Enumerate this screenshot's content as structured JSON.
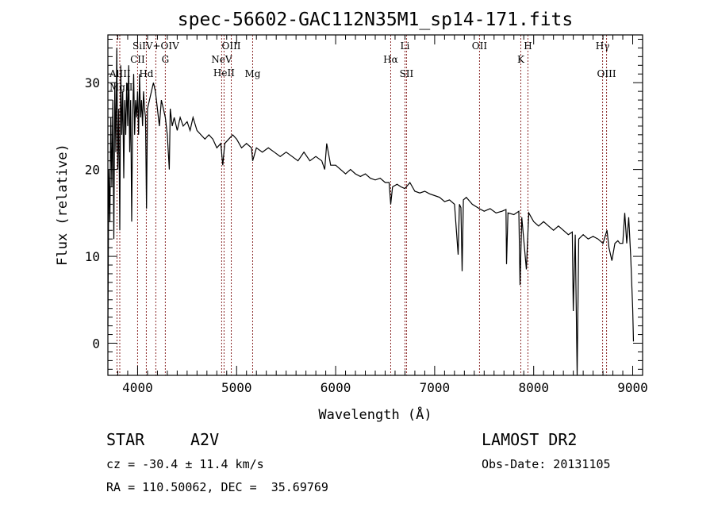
{
  "chart_data": {
    "type": "line",
    "title": "spec-56602-GAC112N35M1_sp14-171.fits",
    "xlabel": "Wavelength (Å)",
    "ylabel": "Flux (relative)",
    "xlim": [
      3700,
      9100
    ],
    "ylim": [
      -3.7,
      35.5
    ],
    "xticks": [
      4000,
      5000,
      6000,
      7000,
      8000,
      9000
    ],
    "xtick_labels": [
      "4000",
      "5000",
      "6000",
      "7000",
      "8000",
      "9000"
    ],
    "yticks": [
      0,
      10,
      20,
      30
    ],
    "ytick_labels": [
      "0",
      "10",
      "20",
      "30"
    ],
    "grid": false,
    "series": [
      {
        "name": "spectrum",
        "color": "#000000",
        "points": [
          [
            3700,
            2
          ],
          [
            3710,
            20
          ],
          [
            3720,
            14
          ],
          [
            3730,
            26
          ],
          [
            3740,
            18
          ],
          [
            3750,
            28
          ],
          [
            3760,
            12
          ],
          [
            3770,
            30
          ],
          [
            3780,
            22
          ],
          [
            3790,
            34
          ],
          [
            3800,
            20
          ],
          [
            3810,
            27
          ],
          [
            3820,
            13
          ],
          [
            3830,
            32
          ],
          [
            3840,
            24
          ],
          [
            3850,
            29
          ],
          [
            3860,
            19
          ],
          [
            3870,
            28
          ],
          [
            3880,
            24
          ],
          [
            3890,
            30
          ],
          [
            3900,
            25
          ],
          [
            3910,
            32
          ],
          [
            3920,
            22
          ],
          [
            3930,
            28
          ],
          [
            3940,
            14
          ],
          [
            3950,
            26
          ],
          [
            3960,
            31
          ],
          [
            3970,
            24
          ],
          [
            3980,
            28
          ],
          [
            3990,
            26
          ],
          [
            4000,
            29
          ],
          [
            4010,
            24
          ],
          [
            4020,
            31
          ],
          [
            4030,
            26
          ],
          [
            4040,
            28
          ],
          [
            4050,
            25
          ],
          [
            4060,
            29
          ],
          [
            4070,
            27
          ],
          [
            4080,
            26
          ],
          [
            4090,
            15.5
          ],
          [
            4100,
            27
          ],
          [
            4120,
            28
          ],
          [
            4140,
            29
          ],
          [
            4160,
            30
          ],
          [
            4180,
            29
          ],
          [
            4200,
            27
          ],
          [
            4220,
            25
          ],
          [
            4240,
            28
          ],
          [
            4260,
            27
          ],
          [
            4280,
            26
          ],
          [
            4300,
            24
          ],
          [
            4320,
            20
          ],
          [
            4330,
            27
          ],
          [
            4350,
            25
          ],
          [
            4370,
            26
          ],
          [
            4400,
            24.5
          ],
          [
            4430,
            26
          ],
          [
            4460,
            25
          ],
          [
            4500,
            25.5
          ],
          [
            4530,
            24.5
          ],
          [
            4560,
            26
          ],
          [
            4600,
            24.5
          ],
          [
            4640,
            24
          ],
          [
            4680,
            23.5
          ],
          [
            4720,
            24
          ],
          [
            4760,
            23.5
          ],
          [
            4800,
            22.5
          ],
          [
            4840,
            23
          ],
          [
            4860,
            20.5
          ],
          [
            4880,
            23
          ],
          [
            4920,
            23.5
          ],
          [
            4960,
            24
          ],
          [
            5000,
            23.5
          ],
          [
            5050,
            22.5
          ],
          [
            5100,
            23
          ],
          [
            5150,
            22.5
          ],
          [
            5162,
            21
          ],
          [
            5200,
            22.5
          ],
          [
            5260,
            22
          ],
          [
            5320,
            22.5
          ],
          [
            5380,
            22
          ],
          [
            5440,
            21.5
          ],
          [
            5500,
            22
          ],
          [
            5560,
            21.5
          ],
          [
            5620,
            21
          ],
          [
            5680,
            22
          ],
          [
            5740,
            21
          ],
          [
            5800,
            21.5
          ],
          [
            5860,
            21
          ],
          [
            5890,
            20
          ],
          [
            5910,
            23
          ],
          [
            5950,
            20.5
          ],
          [
            6000,
            20.5
          ],
          [
            6050,
            20
          ],
          [
            6100,
            19.5
          ],
          [
            6150,
            20
          ],
          [
            6200,
            19.5
          ],
          [
            6250,
            19.2
          ],
          [
            6300,
            19.5
          ],
          [
            6350,
            19
          ],
          [
            6400,
            18.8
          ],
          [
            6450,
            19
          ],
          [
            6500,
            18.5
          ],
          [
            6540,
            18.5
          ],
          [
            6556,
            16
          ],
          [
            6575,
            18
          ],
          [
            6620,
            18.3
          ],
          [
            6660,
            18
          ],
          [
            6700,
            17.8
          ],
          [
            6750,
            18.5
          ],
          [
            6800,
            17.5
          ],
          [
            6850,
            17.3
          ],
          [
            6900,
            17.5
          ],
          [
            6950,
            17.2
          ],
          [
            7000,
            17
          ],
          [
            7050,
            16.8
          ],
          [
            7100,
            16.3
          ],
          [
            7150,
            16.5
          ],
          [
            7200,
            16
          ],
          [
            7237,
            10.2
          ],
          [
            7250,
            16
          ],
          [
            7265,
            15.6
          ],
          [
            7277,
            8.3
          ],
          [
            7290,
            16.5
          ],
          [
            7320,
            16.8
          ],
          [
            7380,
            16
          ],
          [
            7450,
            15.5
          ],
          [
            7500,
            15.2
          ],
          [
            7560,
            15.5
          ],
          [
            7620,
            15
          ],
          [
            7680,
            15.2
          ],
          [
            7720,
            15.4
          ],
          [
            7726,
            9.1
          ],
          [
            7740,
            15
          ],
          [
            7800,
            14.8
          ],
          [
            7850,
            15.2
          ],
          [
            7862,
            6.7
          ],
          [
            7880,
            14.5
          ],
          [
            7926,
            8.5
          ],
          [
            7950,
            15
          ],
          [
            8000,
            14
          ],
          [
            8050,
            13.5
          ],
          [
            8100,
            14
          ],
          [
            8150,
            13.5
          ],
          [
            8200,
            13
          ],
          [
            8250,
            13.5
          ],
          [
            8300,
            13
          ],
          [
            8350,
            12.5
          ],
          [
            8390,
            12.8
          ],
          [
            8400,
            3.7
          ],
          [
            8420,
            12.5
          ],
          [
            8439,
            -3.7
          ],
          [
            8455,
            12
          ],
          [
            8500,
            12.5
          ],
          [
            8550,
            12
          ],
          [
            8600,
            12.3
          ],
          [
            8650,
            12
          ],
          [
            8700,
            11.5
          ],
          [
            8740,
            13
          ],
          [
            8760,
            11
          ],
          [
            8790,
            9.5
          ],
          [
            8820,
            11.5
          ],
          [
            8850,
            11.8
          ],
          [
            8870,
            11.5
          ],
          [
            8900,
            11.5
          ],
          [
            8920,
            15
          ],
          [
            8940,
            11.5
          ],
          [
            8960,
            14.5
          ],
          [
            8980,
            10
          ],
          [
            9000,
            4
          ],
          [
            9008,
            0.2
          ]
        ]
      }
    ],
    "line_markers": [
      {
        "label": "AlIII",
        "wavelength": 3792,
        "row": 3
      },
      {
        "label": "MgII",
        "wavelength": 3820,
        "row": 3
      },
      {
        "label": "CII",
        "wavelength": 4000,
        "row": 2
      },
      {
        "label": "Hd",
        "wavelength": 4088,
        "row": 3
      },
      {
        "label": "SiIV+OIV",
        "wavelength": 4184,
        "row": 1
      },
      {
        "label": "G",
        "wavelength": 4280,
        "row": 2
      },
      {
        "label": "NeV",
        "wavelength": 4849,
        "row": 2
      },
      {
        "label": "HeII",
        "wavelength": 4873,
        "row": 2
      },
      {
        "label": "OIII",
        "wavelength": 4946,
        "row": 1
      },
      {
        "label": "Mg",
        "wavelength": 5162,
        "row": 3
      },
      {
        "label": "Hα",
        "wavelength": 6556,
        "row": 2
      },
      {
        "label": "Li",
        "wavelength": 6700,
        "row": 1
      },
      {
        "label": "SII",
        "wavelength": 6716,
        "row": 3
      },
      {
        "label": "OII",
        "wavelength": 7453,
        "row": 1
      },
      {
        "label": "K",
        "wavelength": 7870,
        "row": 2
      },
      {
        "label": "H",
        "wavelength": 7942,
        "row": 1
      },
      {
        "label": "Hγ",
        "wavelength": 8696,
        "row": 1
      },
      {
        "label": "OIII",
        "wavelength": 8736,
        "row": 3
      }
    ],
    "marker_color": "#8b2a2a"
  },
  "info": {
    "object_class": "STAR",
    "subclass": "A2V",
    "survey": "LAMOST DR2",
    "cz": "cz = -30.4 ± 11.4 km/s",
    "obs_date": "Obs-Date: 20131105",
    "coords": "RA = 110.50062, DEC =  35.69769"
  }
}
